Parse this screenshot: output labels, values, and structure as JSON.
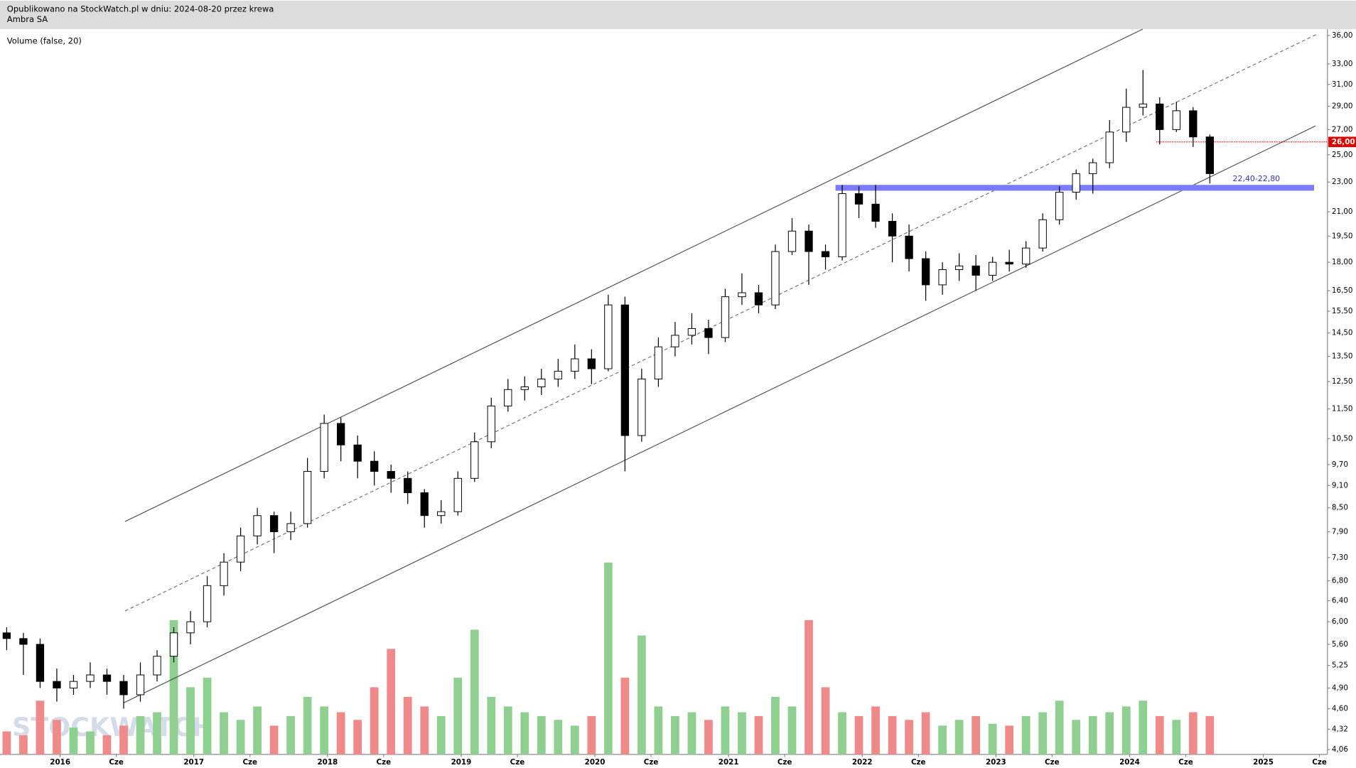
{
  "watermark": "STOCKWATCH",
  "chart_data": [
    {
      "type": "candlestick",
      "log_scale": true,
      "subtitle": "Opublikowano na StockWatch.pl w dniu: 2024-08-20 przez krewa",
      "title": "Ambra SA",
      "colors": {
        "up": "#ffffff",
        "down": "#000000",
        "outline": "#000000"
      },
      "xlim": [
        2015.55,
        2025.48
      ],
      "xticks": [
        {
          "value": 2016,
          "label": "2016"
        },
        {
          "value": 2016.42,
          "label": "Cze"
        },
        {
          "value": 2017,
          "label": "2017"
        },
        {
          "value": 2017.42,
          "label": "Cze"
        },
        {
          "value": 2018,
          "label": "2018"
        },
        {
          "value": 2018.42,
          "label": "Cze"
        },
        {
          "value": 2019,
          "label": "2019"
        },
        {
          "value": 2019.42,
          "label": "Cze"
        },
        {
          "value": 2020,
          "label": "2020"
        },
        {
          "value": 2020.42,
          "label": "Cze"
        },
        {
          "value": 2021,
          "label": "2021"
        },
        {
          "value": 2021.42,
          "label": "Cze"
        },
        {
          "value": 2022,
          "label": "2022"
        },
        {
          "value": 2022.42,
          "label": "Cze"
        },
        {
          "value": 2023,
          "label": "2023"
        },
        {
          "value": 2023.42,
          "label": "Cze"
        },
        {
          "value": 2024,
          "label": "2024"
        },
        {
          "value": 2024.42,
          "label": "Cze"
        },
        {
          "value": 2025,
          "label": "2025"
        },
        {
          "value": 2025.42,
          "label": "Cze"
        }
      ],
      "ylim": [
        4.0,
        36.8
      ],
      "yticks": [
        {
          "value": 36,
          "label": "36,00"
        },
        {
          "value": 33,
          "label": "33,00"
        },
        {
          "value": 31,
          "label": "31,00"
        },
        {
          "value": 29,
          "label": "29,00"
        },
        {
          "value": 27,
          "label": "27,00"
        },
        {
          "value": 25,
          "label": "25,00"
        },
        {
          "value": 23,
          "label": "23,00"
        },
        {
          "value": 21,
          "label": "21,00"
        },
        {
          "value": 19.5,
          "label": "19,50"
        },
        {
          "value": 18,
          "label": "18,00"
        },
        {
          "value": 16.5,
          "label": "16,50"
        },
        {
          "value": 15.5,
          "label": "15,50"
        },
        {
          "value": 14.5,
          "label": "14,50"
        },
        {
          "value": 13.5,
          "label": "13,50"
        },
        {
          "value": 12.5,
          "label": "12,50"
        },
        {
          "value": 11.5,
          "label": "11,50"
        },
        {
          "value": 10.5,
          "label": "10,50"
        },
        {
          "value": 9.7,
          "label": "9,70"
        },
        {
          "value": 9.1,
          "label": "9,10"
        },
        {
          "value": 8.5,
          "label": "8,50"
        },
        {
          "value": 7.9,
          "label": "7,90"
        },
        {
          "value": 7.3,
          "label": "7,30"
        },
        {
          "value": 6.8,
          "label": "6,80"
        },
        {
          "value": 6.4,
          "label": "6,40"
        },
        {
          "value": 6.0,
          "label": "6,00"
        },
        {
          "value": 5.6,
          "label": "5,60"
        },
        {
          "value": 5.25,
          "label": "5,25"
        },
        {
          "value": 4.9,
          "label": "4,90"
        },
        {
          "value": 4.6,
          "label": "4,60"
        },
        {
          "value": 4.32,
          "label": "4,32"
        },
        {
          "value": 4.06,
          "label": "4,06"
        }
      ],
      "x": [
        2015.6,
        2015.725,
        2015.85,
        2015.975,
        2016.1,
        2016.225,
        2016.35,
        2016.475,
        2016.6,
        2016.725,
        2016.85,
        2016.975,
        2017.1,
        2017.225,
        2017.35,
        2017.475,
        2017.6,
        2017.725,
        2017.85,
        2017.975,
        2018.1,
        2018.225,
        2018.35,
        2018.475,
        2018.6,
        2018.725,
        2018.85,
        2018.975,
        2019.1,
        2019.225,
        2019.35,
        2019.475,
        2019.6,
        2019.725,
        2019.85,
        2019.975,
        2020.1,
        2020.225,
        2020.35,
        2020.475,
        2020.6,
        2020.725,
        2020.85,
        2020.975,
        2021.1,
        2021.225,
        2021.35,
        2021.475,
        2021.6,
        2021.725,
        2021.85,
        2021.975,
        2022.1,
        2022.225,
        2022.35,
        2022.475,
        2022.6,
        2022.725,
        2022.85,
        2022.975,
        2023.1,
        2023.225,
        2023.35,
        2023.475,
        2023.6,
        2023.725,
        2023.85,
        2023.975,
        2024.1,
        2024.225,
        2024.35,
        2024.475,
        2024.6
      ],
      "open": [
        5.8,
        5.7,
        5.6,
        5.0,
        4.9,
        5.0,
        5.1,
        5.0,
        4.8,
        5.1,
        5.4,
        5.8,
        6.0,
        6.7,
        7.2,
        7.8,
        8.3,
        7.9,
        8.1,
        9.5,
        11.0,
        10.3,
        9.8,
        9.5,
        9.3,
        8.9,
        8.3,
        8.4,
        9.3,
        10.4,
        11.6,
        12.2,
        12.3,
        12.6,
        12.9,
        13.4,
        13.0,
        15.8,
        10.6,
        12.6,
        13.9,
        14.4,
        14.7,
        14.3,
        16.2,
        16.4,
        15.8,
        18.6,
        19.8,
        18.6,
        18.3,
        22.2,
        21.5,
        20.4,
        19.5,
        18.2,
        16.8,
        17.6,
        17.8,
        17.3,
        18.0,
        17.9,
        18.8,
        20.5,
        22.3,
        23.6,
        24.4,
        26.8,
        28.9,
        29.2,
        27.0,
        28.6,
        26.4
      ],
      "high": [
        5.9,
        5.8,
        5.7,
        5.2,
        5.1,
        5.3,
        5.2,
        5.1,
        5.3,
        5.5,
        5.9,
        6.2,
        6.9,
        7.4,
        8.0,
        8.5,
        8.4,
        8.4,
        9.9,
        11.3,
        11.2,
        10.6,
        10.1,
        9.7,
        9.5,
        9.0,
        8.7,
        9.5,
        10.7,
        11.9,
        12.6,
        12.7,
        13.0,
        13.4,
        14.0,
        13.8,
        16.3,
        16.2,
        13.0,
        14.3,
        15.0,
        15.4,
        15.1,
        16.6,
        17.4,
        16.8,
        19.0,
        20.6,
        20.2,
        19.0,
        22.8,
        22.7,
        22.8,
        20.9,
        20.2,
        18.6,
        18.0,
        18.5,
        18.4,
        18.3,
        18.7,
        19.2,
        20.9,
        22.7,
        23.9,
        24.7,
        27.8,
        30.6,
        32.4,
        29.8,
        29.4,
        28.9,
        26.6
      ],
      "low": [
        5.5,
        5.1,
        4.9,
        4.7,
        4.8,
        4.9,
        4.8,
        4.6,
        4.7,
        5.0,
        5.3,
        5.6,
        5.9,
        6.5,
        7.0,
        7.6,
        7.4,
        7.7,
        8.0,
        9.3,
        9.8,
        9.3,
        9.1,
        8.9,
        8.6,
        8.0,
        8.1,
        8.3,
        9.2,
        10.2,
        11.4,
        11.8,
        12.0,
        12.3,
        12.6,
        12.4,
        12.9,
        9.5,
        10.4,
        12.3,
        13.5,
        14.0,
        13.6,
        14.1,
        15.8,
        15.4,
        15.6,
        18.4,
        16.8,
        17.6,
        18.1,
        20.6,
        20.0,
        18.0,
        17.5,
        16.0,
        16.3,
        17.0,
        16.5,
        17.0,
        17.5,
        17.7,
        18.6,
        20.2,
        21.8,
        22.2,
        24.0,
        26.0,
        28.2,
        25.8,
        26.8,
        25.6,
        22.9
      ],
      "close": [
        5.7,
        5.6,
        5.0,
        4.9,
        5.0,
        5.1,
        5.0,
        4.8,
        5.1,
        5.4,
        5.8,
        6.0,
        6.7,
        7.2,
        7.8,
        8.3,
        7.9,
        8.1,
        9.5,
        11.0,
        10.3,
        9.8,
        9.5,
        9.3,
        8.9,
        8.3,
        8.4,
        9.3,
        10.4,
        11.6,
        12.2,
        12.3,
        12.6,
        12.9,
        13.4,
        13.0,
        15.8,
        10.6,
        12.6,
        13.9,
        14.4,
        14.7,
        14.3,
        16.2,
        16.4,
        15.8,
        18.6,
        19.8,
        18.6,
        18.3,
        22.2,
        21.5,
        20.4,
        19.5,
        18.2,
        16.8,
        17.6,
        17.8,
        17.3,
        18.0,
        17.9,
        18.8,
        20.5,
        22.3,
        23.6,
        24.4,
        26.8,
        28.9,
        29.2,
        27.0,
        28.6,
        26.4,
        23.6
      ],
      "trend_lines": [
        {
          "x": [
            2016.485,
            2024.098
          ],
          "y": [
            8.15,
            36.7
          ],
          "color": "#555555",
          "dashed": false
        },
        {
          "x": [
            2016.472,
            2025.39
          ],
          "y": [
            4.68,
            27.3
          ],
          "color": "#555555",
          "dashed": false
        },
        {
          "x": [
            2016.485,
            2025.41
          ],
          "y": [
            6.2,
            36.2
          ],
          "color": "#777777",
          "dashed": true
        }
      ],
      "zone": {
        "low": 22.4,
        "high": 22.8,
        "x": [
          2021.8,
          2025.38
        ],
        "label": "22,40-22,80",
        "color": "#7b7bf7"
      },
      "level": {
        "value": 26,
        "x": [
          2024.2,
          2025.48
        ],
        "label": "26,00",
        "color": "#e00000"
      }
    },
    {
      "type": "volume",
      "title": "Volume (false, 20)",
      "colors": {
        "up": "#8fcf8f",
        "down": "#f08a8a"
      },
      "ylim": [
        0,
        100
      ],
      "values": [
        12,
        10,
        28,
        18,
        14,
        12,
        10,
        15,
        20,
        22,
        70,
        35,
        40,
        22,
        18,
        25,
        15,
        20,
        30,
        25,
        22,
        18,
        35,
        55,
        30,
        25,
        20,
        40,
        65,
        30,
        25,
        22,
        20,
        18,
        15,
        20,
        100,
        40,
        62,
        25,
        20,
        22,
        18,
        25,
        22,
        20,
        30,
        25,
        70,
        35,
        22,
        20,
        25,
        20,
        18,
        22,
        15,
        18,
        20,
        16,
        15,
        20,
        22,
        28,
        18,
        20,
        22,
        25,
        28,
        20,
        18,
        22,
        20
      ]
    }
  ]
}
